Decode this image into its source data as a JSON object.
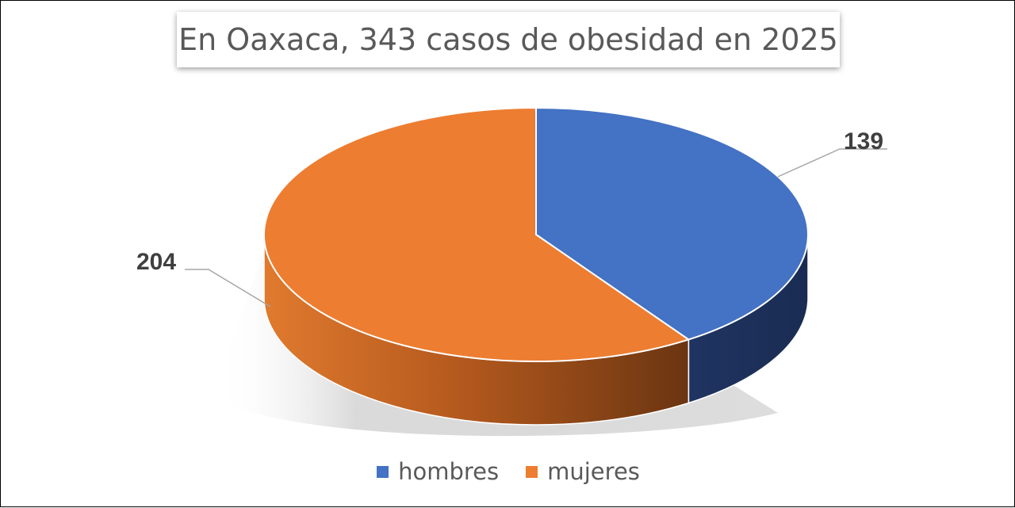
{
  "chart_data": {
    "type": "pie",
    "title": "En Oaxaca, 343 casos de obesidad en 2025",
    "categories": [
      "hombres",
      "mujeres"
    ],
    "values": [
      139,
      204
    ],
    "data_labels": [
      "139",
      "204"
    ],
    "colors": [
      "#4472C4",
      "#ED7D31"
    ],
    "legend": {
      "position": "bottom",
      "entries": [
        "hombres",
        "mujeres"
      ]
    },
    "style": "3d"
  }
}
